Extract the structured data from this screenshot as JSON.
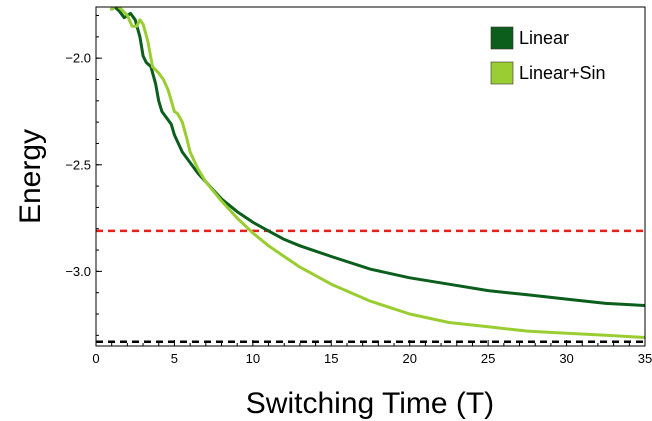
{
  "chart_data": {
    "type": "line",
    "xlabel": "Switching Time (T)",
    "ylabel": "Energy",
    "xlim": [
      0,
      35
    ],
    "ylim": [
      -3.35,
      -1.76
    ],
    "x_ticks": [
      0,
      5,
      10,
      15,
      20,
      25,
      30,
      35
    ],
    "x_tick_labels": [
      "0",
      "5",
      "10",
      "15",
      "20",
      "25",
      "30",
      "35"
    ],
    "y_ticks": [
      -2.0,
      -2.5,
      -3.0
    ],
    "y_tick_labels": [
      "−2.0",
      "−2.5",
      "−3.0"
    ],
    "legend_position": "top-right",
    "grid": false,
    "series": [
      {
        "name": "Linear",
        "color": "#0b5e1c",
        "x": [
          1.0,
          1.2,
          1.5,
          1.8,
          2.0,
          2.2,
          2.5,
          2.8,
          3.0,
          3.2,
          3.5,
          3.8,
          4.0,
          4.2,
          4.5,
          4.8,
          5.0,
          5.5,
          6.0,
          6.5,
          7.0,
          7.5,
          8.0,
          9.0,
          10.0,
          11.0,
          12.0,
          13.0,
          15.0,
          17.5,
          20.0,
          22.5,
          25.0,
          27.5,
          30.0,
          32.5,
          35.0
        ],
        "y": [
          -1.77,
          -1.76,
          -1.78,
          -1.81,
          -1.8,
          -1.79,
          -1.82,
          -1.9,
          -1.99,
          -2.02,
          -2.04,
          -2.12,
          -2.2,
          -2.25,
          -2.28,
          -2.31,
          -2.36,
          -2.44,
          -2.49,
          -2.54,
          -2.58,
          -2.62,
          -2.66,
          -2.72,
          -2.77,
          -2.81,
          -2.85,
          -2.88,
          -2.93,
          -2.99,
          -3.03,
          -3.06,
          -3.09,
          -3.11,
          -3.13,
          -3.15,
          -3.16
        ]
      },
      {
        "name": "Linear+Sin",
        "color": "#9acd32",
        "x": [
          1.0,
          1.3,
          1.6,
          2.0,
          2.3,
          2.6,
          2.8,
          3.0,
          3.3,
          3.6,
          4.0,
          4.3,
          4.6,
          4.8,
          5.0,
          5.2,
          5.5,
          5.8,
          6.0,
          6.5,
          7.0,
          8.0,
          9.0,
          10.0,
          11.0,
          12.0,
          13.0,
          15.0,
          17.5,
          20.0,
          22.5,
          25.0,
          27.5,
          30.0,
          32.5,
          35.0
        ],
        "y": [
          -1.77,
          -1.75,
          -1.77,
          -1.8,
          -1.85,
          -1.85,
          -1.82,
          -1.84,
          -1.92,
          -2.04,
          -2.07,
          -2.1,
          -2.15,
          -2.2,
          -2.25,
          -2.26,
          -2.3,
          -2.38,
          -2.44,
          -2.52,
          -2.58,
          -2.67,
          -2.75,
          -2.82,
          -2.88,
          -2.93,
          -2.98,
          -3.06,
          -3.14,
          -3.2,
          -3.24,
          -3.26,
          -3.28,
          -3.29,
          -3.3,
          -3.31
        ]
      }
    ],
    "reference_lines": [
      {
        "y": -2.81,
        "color": "#e8201c",
        "style": "dashed"
      },
      {
        "y": -3.33,
        "color": "#000000",
        "style": "dashed"
      }
    ]
  }
}
